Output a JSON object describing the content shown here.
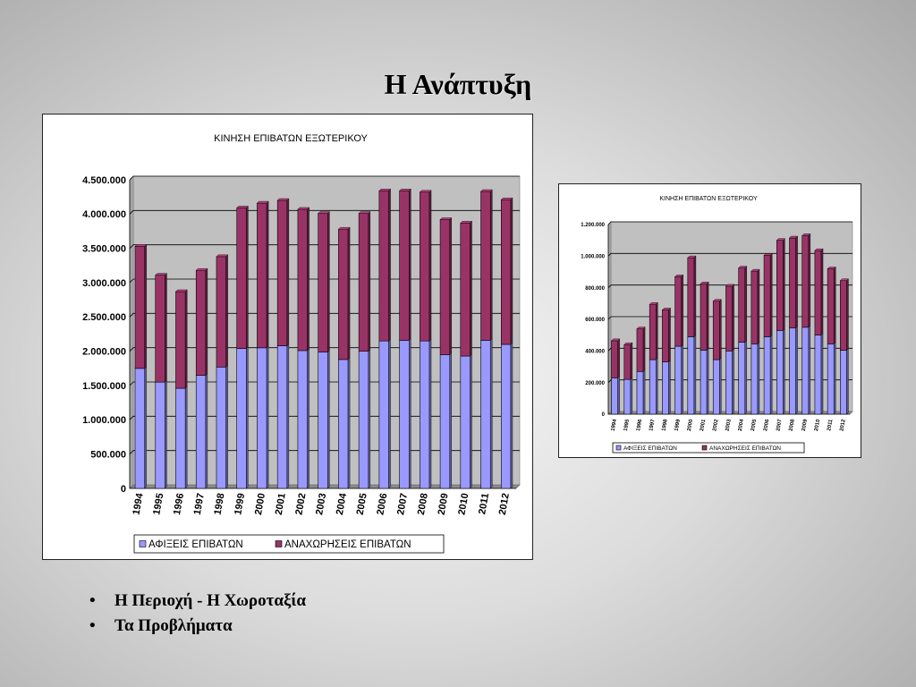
{
  "slide": {
    "title": "Η Ανάπτυξη",
    "bullets": [
      "Η Περιοχή   -   Η Χωροταξία",
      "Τα Προβλήματα"
    ]
  },
  "colors": {
    "arrivals": "#9999ff",
    "departures": "#993366",
    "plot_bg": "#c0c0c0"
  },
  "chart_data": [
    {
      "type": "bar",
      "stacked": true,
      "title": "ΚΙΝΗΣΗ ΕΠΙΒΑΤΩΝ ΕΞΩΤΕΡΙΚΟΥ",
      "categories": [
        "1994",
        "1995",
        "1996",
        "1997",
        "1998",
        "1999",
        "2000",
        "2001",
        "2002",
        "2003",
        "2004",
        "2005",
        "2006",
        "2007",
        "2008",
        "2009",
        "2010",
        "2011",
        "2012"
      ],
      "series": [
        {
          "name": "ΑΦΙΞΕΙΣ ΕΠΙΒΑΤΩΝ",
          "values": [
            1750000,
            1550000,
            1460000,
            1650000,
            1770000,
            2040000,
            2050000,
            2080000,
            2010000,
            1990000,
            1880000,
            2000000,
            2150000,
            2160000,
            2150000,
            1950000,
            1930000,
            2160000,
            2100000
          ]
        },
        {
          "name": "ΑΝΑΧΩΡΗΣΕΙΣ ΕΠΙΒΑΤΩΝ",
          "values": [
            1780000,
            1560000,
            1410000,
            1530000,
            1610000,
            2050000,
            2110000,
            2120000,
            2060000,
            2020000,
            1900000,
            2010000,
            2190000,
            2180000,
            2170000,
            1970000,
            1940000,
            2170000,
            2110000
          ]
        }
      ],
      "yticks": [
        "0",
        "500.000",
        "1.000.000",
        "1.500.000",
        "2.000.000",
        "2.500.000",
        "3.000.000",
        "3.500.000",
        "4.000.000",
        "4.500.000"
      ],
      "ylim": [
        0,
        4500000
      ],
      "grid": true,
      "legend": "bottom"
    },
    {
      "type": "bar",
      "stacked": true,
      "title": "ΚΙΝΗΣΗ ΕΠΙΒΑΤΩΝ ΕΞΩΤΕΡΙΚΟΥ",
      "categories": [
        "1994",
        "1995",
        "1996",
        "1997",
        "1998",
        "1999",
        "2000",
        "2001",
        "2002",
        "2003",
        "2004",
        "2005",
        "2006",
        "2007",
        "2008",
        "2009",
        "2010",
        "2011",
        "2012"
      ],
      "series": [
        {
          "name": "ΑΦΙΞΕΙΣ ΕΠΙΒΑΤΩΝ",
          "values": [
            230000,
            220000,
            270000,
            345000,
            330000,
            430000,
            490000,
            405000,
            345000,
            400000,
            455000,
            445000,
            490000,
            530000,
            545000,
            550000,
            500000,
            445000,
            405000
          ]
        },
        {
          "name": "ΑΝΑΧΩΡΗΣΕΙΣ ΕΠΙΒΑΤΩΝ",
          "values": [
            235000,
            220000,
            270000,
            350000,
            330000,
            440000,
            500000,
            420000,
            370000,
            410000,
            470000,
            460000,
            515000,
            570000,
            570000,
            580000,
            535000,
            475000,
            440000
          ]
        }
      ],
      "yticks": [
        "0",
        "200.000",
        "400.000",
        "600.000",
        "800.000",
        "1.000.000",
        "1.200.000"
      ],
      "ylim": [
        0,
        1200000
      ],
      "grid": true,
      "legend": "bottom"
    }
  ]
}
